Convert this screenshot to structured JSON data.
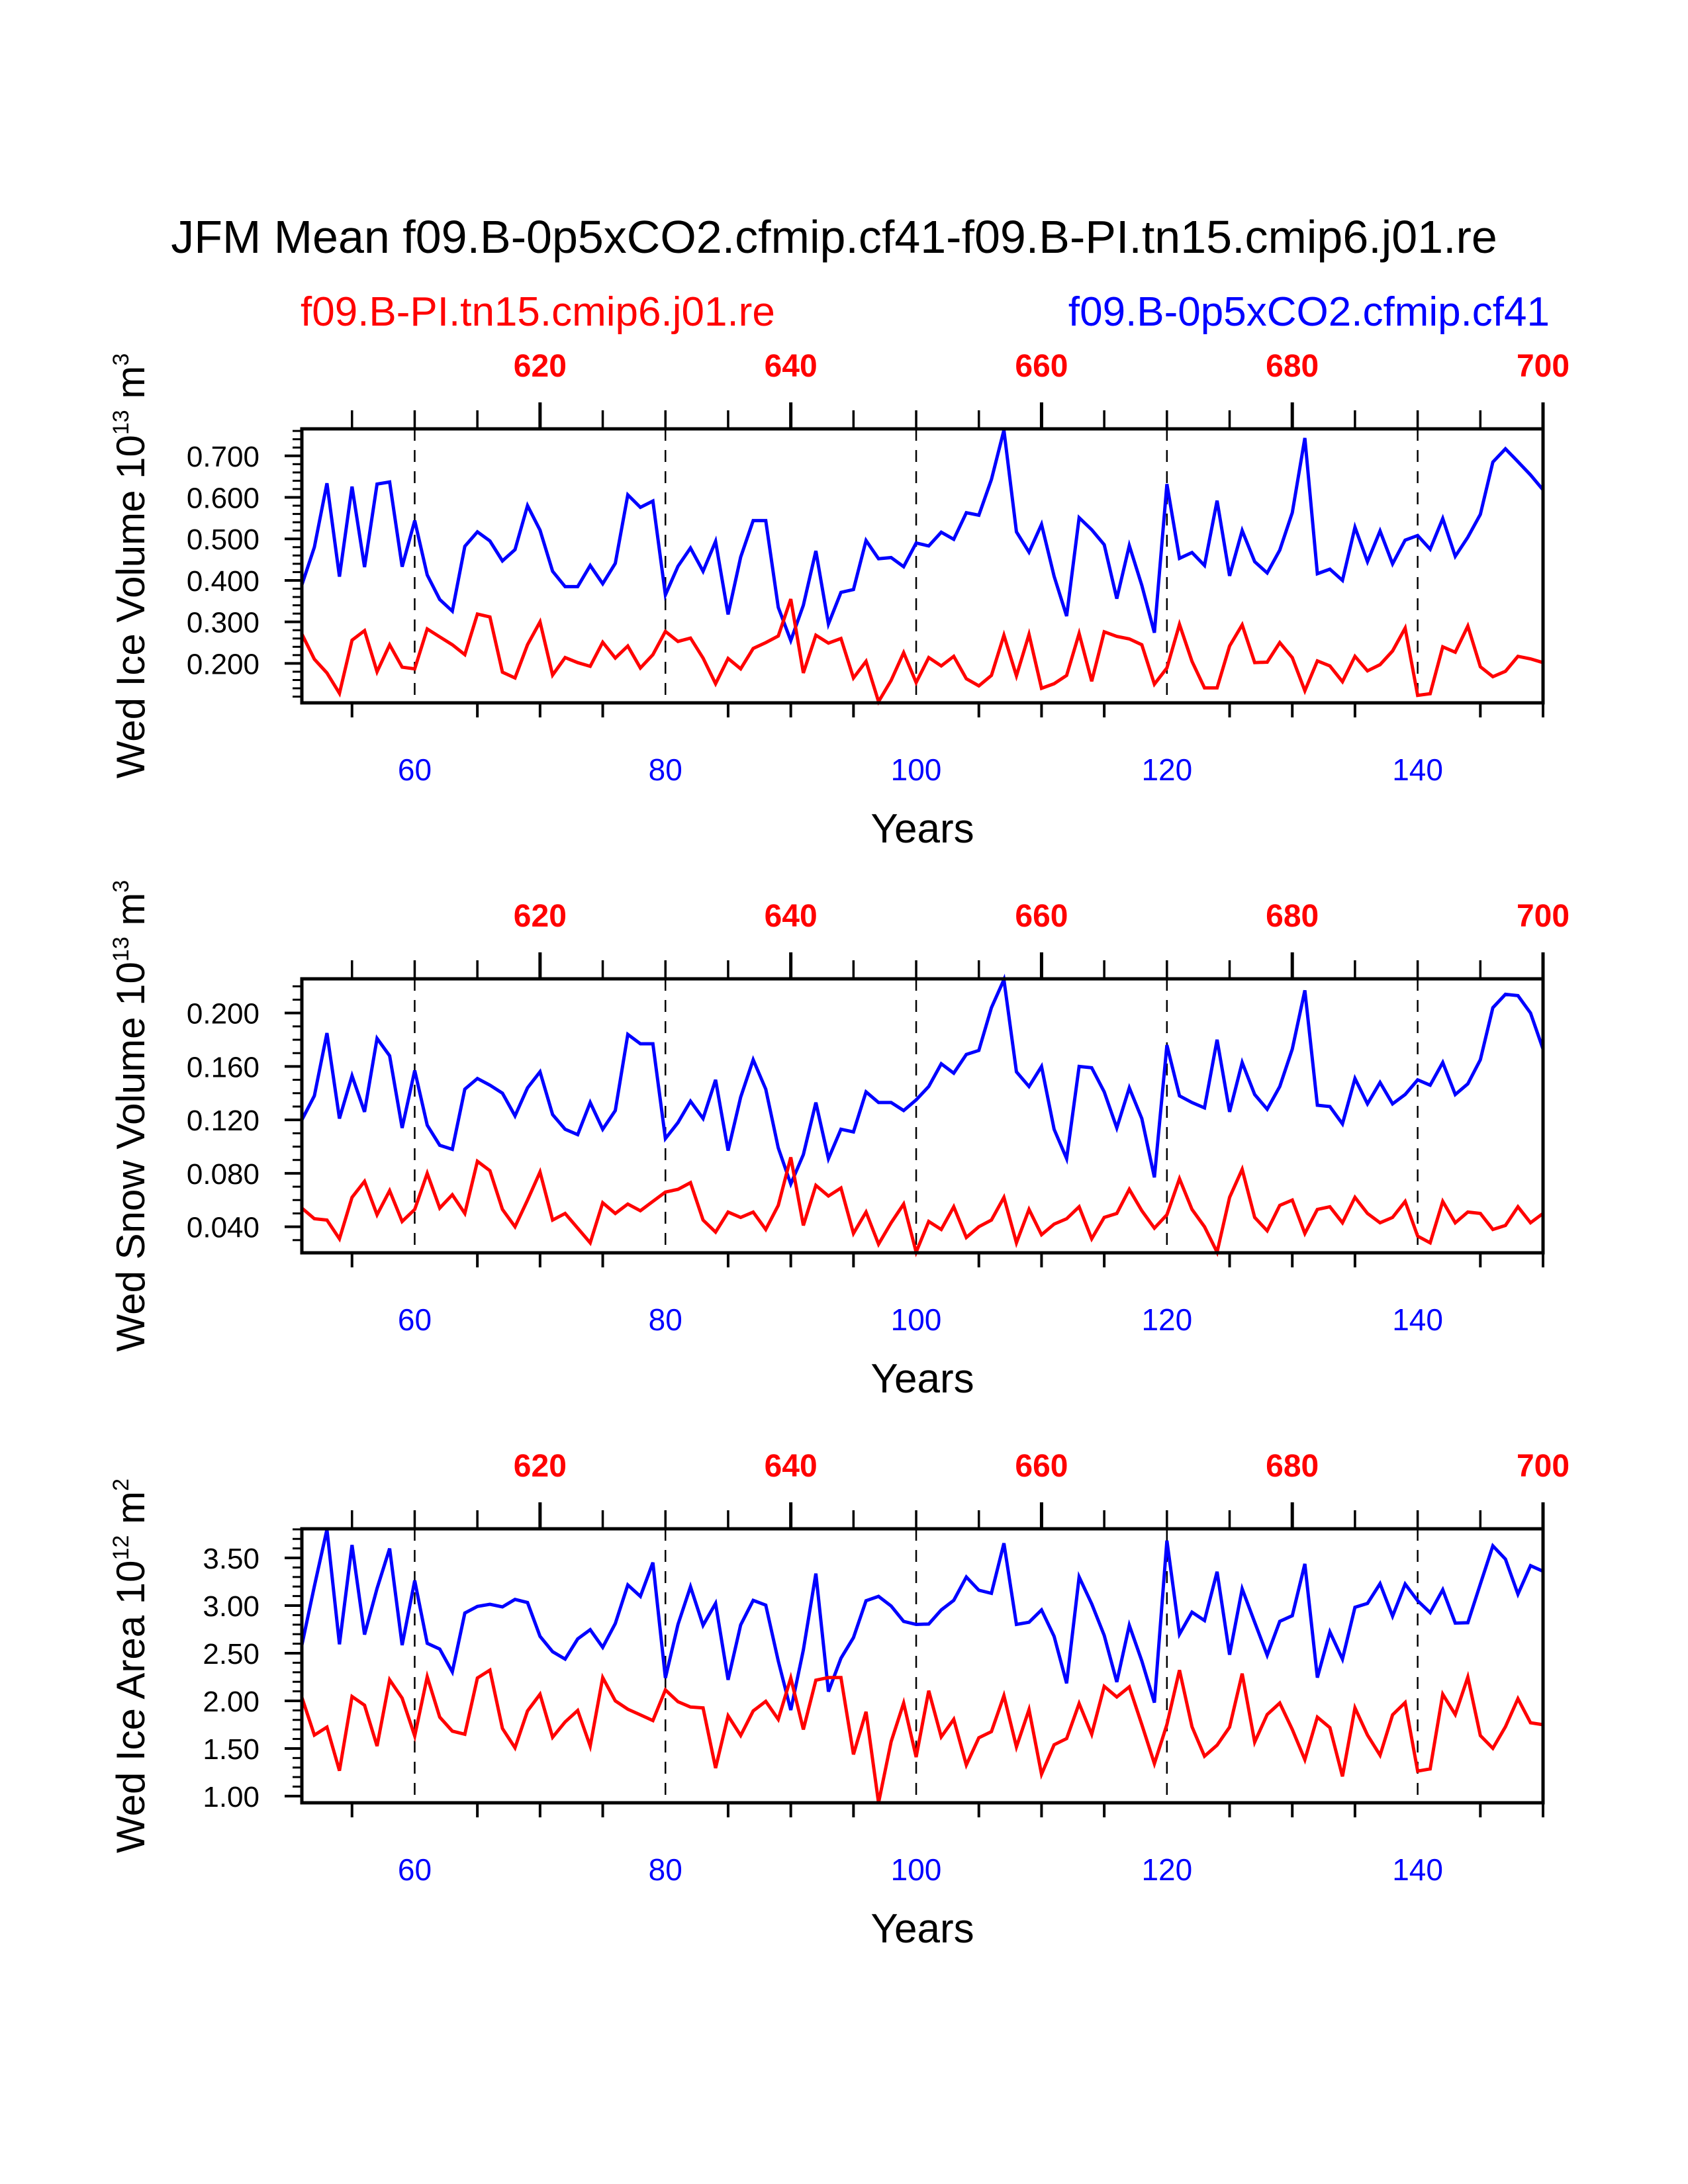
{
  "title": "JFM Mean f09.B-0p5xCO2.cfmip.cf41-f09.B-PI.tn15.cmip6.j01.re",
  "legend": {
    "red_label": "f09.B-PI.tn15.cmip6.j01.re",
    "blue_label": "f09.B-0p5xCO2.cfmip.cf41"
  },
  "colors": {
    "red": "#ff0000",
    "blue": "#0000ff",
    "axis": "#000000"
  },
  "chart_data": [
    {
      "type": "line",
      "xlabel": "Years",
      "ylabel": {
        "text": "Wed Ice Volume 10",
        "exp": "13",
        "unit": " m",
        "unit_exp": "3"
      },
      "x_range": [
        51,
        150
      ],
      "xlim": [
        51,
        150
      ],
      "x_ticks": [
        60,
        80,
        100,
        120,
        140
      ],
      "x_tick_labels": [
        "60",
        "80",
        "100",
        "120",
        "140"
      ],
      "top_axis": {
        "offset": 550,
        "ticks": [
          620,
          640,
          660,
          680,
          700
        ],
        "tick_labels": [
          "620",
          "640",
          "660",
          "680",
          "700"
        ]
      },
      "ylim": [
        0.105,
        0.765
      ],
      "y_ticks": [
        0.2,
        0.3,
        0.4,
        0.5,
        0.6,
        0.7
      ],
      "y_tick_labels": [
        "0.200",
        "0.300",
        "0.400",
        "0.500",
        "0.600",
        "0.700"
      ],
      "y_minor_step": 0.02,
      "series": [
        {
          "name": "f09.B-0p5xCO2.cfmip.cf41",
          "color": "#0000ff",
          "values": [
            0.389,
            0.48,
            0.634,
            0.409,
            0.626,
            0.432,
            0.632,
            0.637,
            0.433,
            0.544,
            0.413,
            0.354,
            0.326,
            0.482,
            0.517,
            0.495,
            0.447,
            0.474,
            0.58,
            0.521,
            0.422,
            0.385,
            0.385,
            0.436,
            0.392,
            0.441,
            0.606,
            0.576,
            0.591,
            0.365,
            0.434,
            0.478,
            0.422,
            0.494,
            0.318,
            0.456,
            0.544,
            0.544,
            0.335,
            0.255,
            0.34,
            0.471,
            0.295,
            0.371,
            0.378,
            0.496,
            0.452,
            0.455,
            0.433,
            0.49,
            0.483,
            0.516,
            0.499,
            0.563,
            0.557,
            0.643,
            0.762,
            0.517,
            0.468,
            0.535,
            0.41,
            0.314,
            0.551,
            0.522,
            0.486,
            0.356,
            0.484,
            0.388,
            0.274,
            0.632,
            0.453,
            0.467,
            0.436,
            0.592,
            0.411,
            0.52,
            0.445,
            0.418,
            0.473,
            0.563,
            0.743,
            0.416,
            0.427,
            0.4,
            0.528,
            0.445,
            0.519,
            0.44,
            0.497,
            0.508,
            0.475,
            0.549,
            0.458,
            0.504,
            0.559,
            0.685,
            0.717,
            0.686,
            0.654,
            0.618
          ]
        },
        {
          "name": "f09.B-PI.tn15.cmip6.j01.re",
          "color": "#ff0000",
          "values": [
            0.271,
            0.21,
            0.177,
            0.128,
            0.256,
            0.279,
            0.18,
            0.245,
            0.191,
            0.187,
            0.283,
            0.264,
            0.245,
            0.221,
            0.319,
            0.312,
            0.179,
            0.165,
            0.245,
            0.3,
            0.172,
            0.214,
            0.202,
            0.193,
            0.251,
            0.213,
            0.242,
            0.189,
            0.221,
            0.277,
            0.253,
            0.261,
            0.213,
            0.151,
            0.212,
            0.187,
            0.236,
            0.25,
            0.266,
            0.355,
            0.177,
            0.268,
            0.249,
            0.26,
            0.165,
            0.205,
            0.108,
            0.159,
            0.226,
            0.154,
            0.214,
            0.194,
            0.217,
            0.163,
            0.146,
            0.171,
            0.268,
            0.17,
            0.27,
            0.14,
            0.151,
            0.171,
            0.272,
            0.157,
            0.276,
            0.265,
            0.259,
            0.245,
            0.15,
            0.189,
            0.294,
            0.205,
            0.141,
            0.141,
            0.242,
            0.293,
            0.202,
            0.203,
            0.25,
            0.214,
            0.134,
            0.206,
            0.194,
            0.156,
            0.217,
            0.182,
            0.197,
            0.23,
            0.285,
            0.123,
            0.127,
            0.24,
            0.227,
            0.29,
            0.192,
            0.168,
            0.181,
            0.217,
            0.211,
            0.202
          ]
        }
      ]
    },
    {
      "type": "line",
      "xlabel": "Years",
      "ylabel": {
        "text": "Wed Snow Volume 10",
        "exp": "13",
        "unit": " m",
        "unit_exp": "3"
      },
      "x_range": [
        51,
        150
      ],
      "xlim": [
        51,
        150
      ],
      "x_ticks": [
        60,
        80,
        100,
        120,
        140
      ],
      "x_tick_labels": [
        "60",
        "80",
        "100",
        "120",
        "140"
      ],
      "top_axis": {
        "offset": 550,
        "ticks": [
          620,
          640,
          660,
          680,
          700
        ],
        "tick_labels": [
          "620",
          "640",
          "660",
          "680",
          "700"
        ]
      },
      "ylim": [
        0.0205,
        0.2256
      ],
      "y_ticks": [
        0.04,
        0.08,
        0.12,
        0.16,
        0.2
      ],
      "y_tick_labels": [
        "0.040",
        "0.080",
        "0.120",
        "0.160",
        "0.200"
      ],
      "y_minor_step": 0.01,
      "series": [
        {
          "name": "f09.B-0p5xCO2.cfmip.cf41",
          "color": "#0000ff",
          "values": [
            0.12,
            0.138,
            0.185,
            0.121,
            0.153,
            0.126,
            0.181,
            0.168,
            0.114,
            0.157,
            0.116,
            0.101,
            0.098,
            0.143,
            0.151,
            0.146,
            0.14,
            0.123,
            0.144,
            0.156,
            0.124,
            0.113,
            0.109,
            0.133,
            0.113,
            0.127,
            0.184,
            0.177,
            0.177,
            0.106,
            0.118,
            0.134,
            0.121,
            0.15,
            0.097,
            0.137,
            0.165,
            0.143,
            0.099,
            0.072,
            0.094,
            0.133,
            0.091,
            0.113,
            0.111,
            0.141,
            0.133,
            0.133,
            0.127,
            0.135,
            0.145,
            0.162,
            0.155,
            0.169,
            0.172,
            0.204,
            0.225,
            0.156,
            0.145,
            0.16,
            0.113,
            0.091,
            0.16,
            0.159,
            0.141,
            0.114,
            0.144,
            0.121,
            0.077,
            0.176,
            0.138,
            0.133,
            0.129,
            0.18,
            0.126,
            0.163,
            0.139,
            0.128,
            0.145,
            0.173,
            0.217,
            0.131,
            0.13,
            0.117,
            0.151,
            0.132,
            0.148,
            0.132,
            0.139,
            0.15,
            0.146,
            0.163,
            0.139,
            0.147,
            0.165,
            0.204,
            0.214,
            0.213,
            0.2,
            0.173
          ]
        },
        {
          "name": "f09.B-PI.tn15.cmip6.j01.re",
          "color": "#ff0000",
          "values": [
            0.054,
            0.046,
            0.045,
            0.031,
            0.062,
            0.074,
            0.049,
            0.067,
            0.044,
            0.053,
            0.08,
            0.054,
            0.064,
            0.05,
            0.089,
            0.082,
            0.053,
            0.04,
            0.06,
            0.081,
            0.045,
            0.05,
            0.039,
            0.028,
            0.058,
            0.05,
            0.057,
            0.052,
            0.059,
            0.066,
            0.068,
            0.073,
            0.045,
            0.036,
            0.051,
            0.047,
            0.051,
            0.038,
            0.056,
            0.092,
            0.041,
            0.071,
            0.063,
            0.069,
            0.035,
            0.051,
            0.027,
            0.043,
            0.057,
            0.021,
            0.044,
            0.038,
            0.055,
            0.032,
            0.04,
            0.045,
            0.062,
            0.028,
            0.053,
            0.034,
            0.042,
            0.046,
            0.055,
            0.031,
            0.047,
            0.05,
            0.068,
            0.052,
            0.039,
            0.049,
            0.076,
            0.053,
            0.04,
            0.021,
            0.062,
            0.083,
            0.047,
            0.037,
            0.056,
            0.06,
            0.035,
            0.053,
            0.055,
            0.043,
            0.062,
            0.05,
            0.043,
            0.047,
            0.059,
            0.033,
            0.028,
            0.059,
            0.043,
            0.051,
            0.05,
            0.038,
            0.041,
            0.055,
            0.043,
            0.05
          ]
        }
      ]
    },
    {
      "type": "line",
      "xlabel": "Years",
      "ylabel": {
        "text": "Wed Ice Area 10",
        "exp": "12",
        "unit": " m",
        "unit_exp": "2"
      },
      "x_range": [
        51,
        150
      ],
      "xlim": [
        51,
        150
      ],
      "x_ticks": [
        60,
        80,
        100,
        120,
        140
      ],
      "x_tick_labels": [
        "60",
        "80",
        "100",
        "120",
        "140"
      ],
      "top_axis": {
        "offset": 550,
        "ticks": [
          620,
          640,
          660,
          680,
          700
        ],
        "tick_labels": [
          "620",
          "640",
          "660",
          "680",
          "700"
        ]
      },
      "ylim": [
        0.93,
        3.806
      ],
      "y_ticks": [
        1.0,
        1.5,
        2.0,
        2.5,
        3.0,
        3.5
      ],
      "y_tick_labels": [
        "1.00",
        "1.50",
        "2.00",
        "2.50",
        "3.00",
        "3.50"
      ],
      "y_minor_step": 0.1,
      "series": [
        {
          "name": "f09.B-0p5xCO2.cfmip.cf41",
          "color": "#0000ff",
          "values": [
            2.585,
            3.203,
            3.8,
            2.594,
            3.636,
            2.696,
            3.18,
            3.599,
            2.585,
            3.263,
            2.604,
            2.544,
            2.304,
            2.922,
            2.991,
            3.014,
            2.986,
            3.065,
            3.032,
            2.677,
            2.516,
            2.438,
            2.65,
            2.747,
            2.562,
            2.811,
            3.217,
            3.097,
            3.452,
            2.24,
            2.802,
            3.198,
            2.793,
            3.023,
            2.221,
            2.797,
            3.055,
            3.005,
            2.419,
            1.903,
            2.535,
            3.336,
            2.097,
            2.447,
            2.664,
            3.051,
            3.097,
            2.995,
            2.834,
            2.802,
            2.806,
            2.954,
            3.055,
            3.3,
            3.161,
            3.129,
            3.654,
            2.802,
            2.825,
            2.954,
            2.677,
            2.184,
            3.3,
            3.018,
            2.687,
            2.198,
            2.793,
            2.419,
            1.982,
            3.682,
            2.7,
            2.931,
            2.843,
            3.355,
            2.484,
            3.175,
            2.825,
            2.479,
            2.834,
            2.894,
            3.438,
            2.244,
            2.724,
            2.438,
            2.982,
            3.023,
            3.23,
            2.889,
            3.226,
            3.051,
            2.926,
            3.166,
            2.816,
            2.82,
            3.226,
            3.627,
            3.488,
            3.12,
            3.419,
            3.36
          ]
        },
        {
          "name": "f09.B-PI.tn15.cmip6.j01.re",
          "color": "#ff0000",
          "values": [
            2.037,
            1.641,
            1.724,
            1.267,
            2.046,
            1.954,
            1.525,
            2.221,
            2.028,
            1.631,
            2.253,
            1.829,
            1.682,
            1.65,
            2.24,
            2.323,
            1.71,
            1.507,
            1.894,
            2.069,
            1.618,
            1.779,
            1.899,
            1.525,
            2.244,
            2.0,
            1.912,
            1.853,
            1.793,
            2.115,
            1.991,
            1.935,
            1.926,
            1.295,
            1.843,
            1.636,
            1.894,
            1.995,
            1.806,
            2.24,
            1.7,
            2.217,
            2.244,
            2.244,
            1.438,
            1.885,
            0.93,
            1.571,
            1.977,
            1.41,
            2.106,
            1.622,
            1.806,
            1.327,
            1.613,
            1.677,
            2.055,
            1.516,
            1.908,
            1.23,
            1.539,
            1.604,
            1.972,
            1.65,
            2.152,
            2.041,
            2.147,
            1.751,
            1.341,
            1.751,
            2.323,
            1.728,
            1.419,
            1.535,
            1.724,
            2.286,
            1.567,
            1.857,
            1.977,
            1.7,
            1.382,
            1.829,
            1.719,
            1.207,
            1.926,
            1.641,
            1.429,
            1.853,
            1.982,
            1.263,
            1.286,
            2.069,
            1.857,
            2.249,
            1.636,
            1.502,
            1.728,
            2.023,
            1.77,
            1.75
          ]
        }
      ]
    }
  ]
}
